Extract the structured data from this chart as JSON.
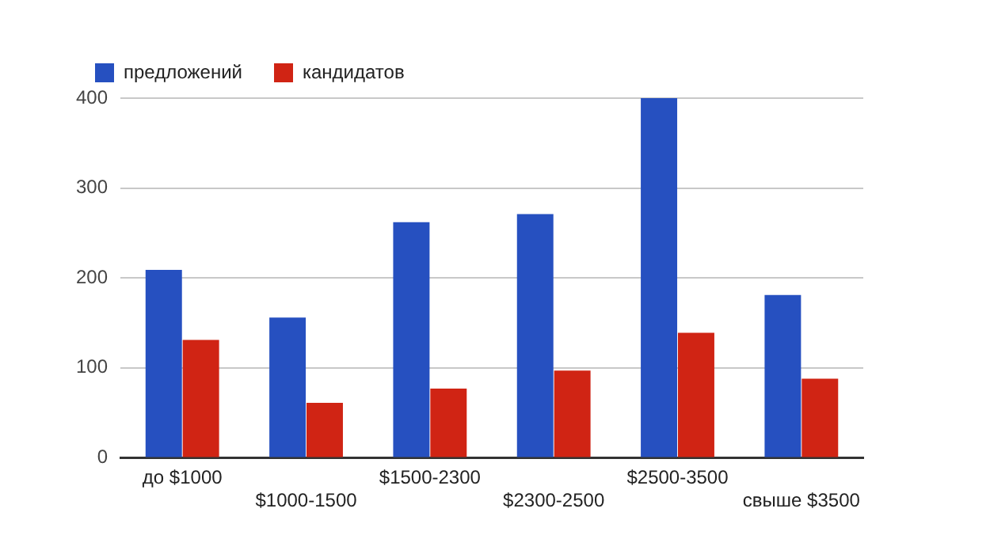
{
  "chart_data": {
    "type": "bar",
    "categories": [
      "до $1000",
      "$1000-1500",
      "$1500-2300",
      "$2300-2500",
      "$2500-3500",
      "свыше $3500"
    ],
    "series": [
      {
        "name": "предложений",
        "color": "#2650c0",
        "values": [
          209,
          156,
          262,
          271,
          400,
          181
        ]
      },
      {
        "name": "кандидатов",
        "color": "#d02414",
        "values": [
          131,
          61,
          77,
          97,
          139,
          88
        ]
      }
    ],
    "ylim": [
      0,
      400
    ],
    "yticks": [
      0,
      100,
      200,
      300,
      400
    ],
    "grid": "y",
    "legend": "top left"
  }
}
